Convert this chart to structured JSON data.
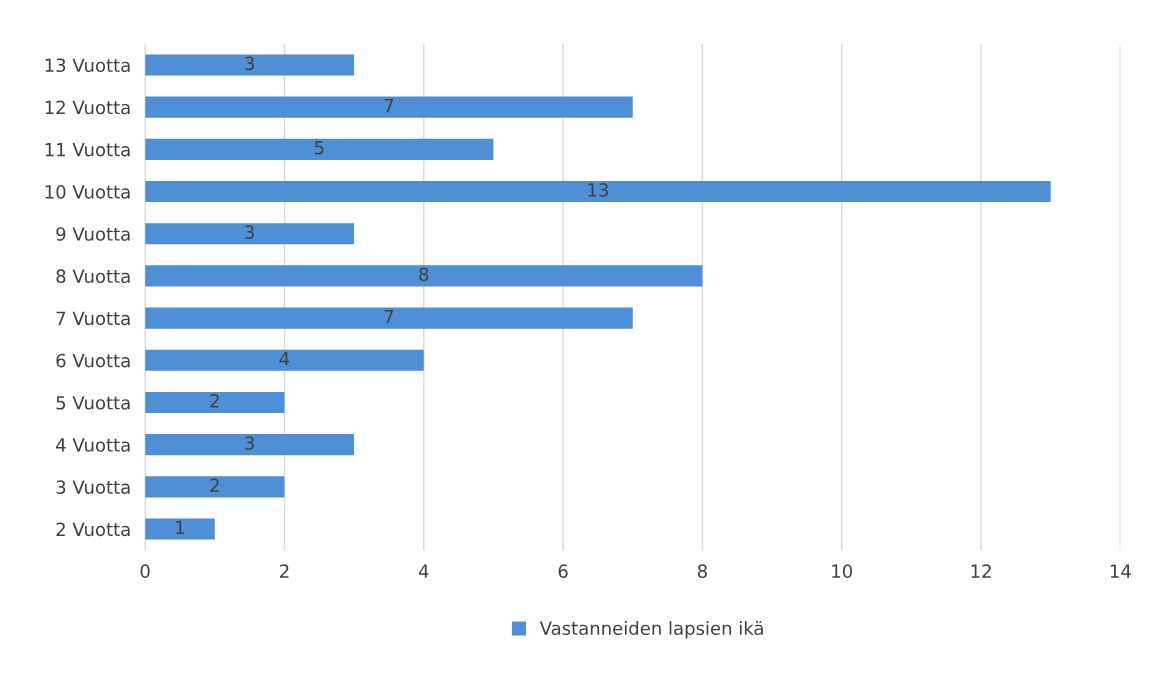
{
  "chart_data": {
    "type": "bar",
    "orientation": "horizontal",
    "categories": [
      "13 Vuotta",
      "12 Vuotta",
      "11 Vuotta",
      "10 Vuotta",
      "9 Vuotta",
      "8 Vuotta",
      "7 Vuotta",
      "6 Vuotta",
      "5 Vuotta",
      "4 Vuotta",
      "3 Vuotta",
      "2 Vuotta"
    ],
    "series": [
      {
        "name": "Vastanneiden lapsien ikä",
        "color": "#4f8fd6",
        "values": [
          3,
          7,
          5,
          13,
          3,
          8,
          7,
          4,
          2,
          3,
          2,
          1
        ]
      }
    ],
    "xlim": [
      0,
      14
    ],
    "xticks": [
      0,
      2,
      4,
      6,
      8,
      10,
      12,
      14
    ],
    "grid": "x",
    "legend": "bottom",
    "data_labels": true
  }
}
